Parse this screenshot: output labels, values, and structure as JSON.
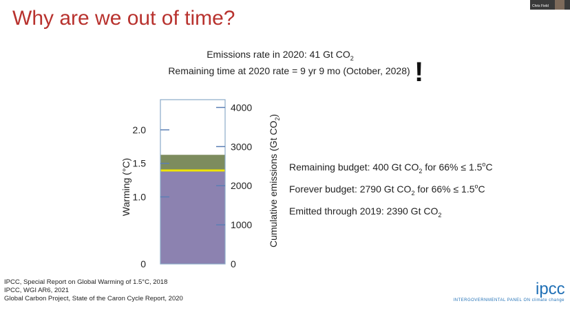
{
  "slide": {
    "title": "Why are we out of time?",
    "headline": [
      [
        {
          "text": "Emissions rate in 2020:  41 Gt CO"
        },
        {
          "sub": "2"
        }
      ],
      [
        {
          "text": "Remaining time at 2020 rate = 9 yr 9 mo (October, 2028)"
        }
      ]
    ],
    "exclamation": "!",
    "budgets": [
      [
        {
          "text": "Remaining budget:  400 Gt CO"
        },
        {
          "sub": "2"
        },
        {
          "text": " for 66% ≤ 1.5"
        },
        {
          "sup": "o"
        },
        {
          "text": "C"
        }
      ],
      [
        {
          "text": "Forever budget:  2790 Gt CO"
        },
        {
          "sub": "2"
        },
        {
          "text": " for 66% ≤ 1.5"
        },
        {
          "sup": "o"
        },
        {
          "text": "C"
        }
      ],
      [
        {
          "text": "Emitted through 2019:    2390 Gt CO"
        },
        {
          "sub": "2"
        }
      ]
    ],
    "references": [
      "IPCC, Special Report on Global Warming of 1.5°C, 2018",
      "IPCC, WGI AR6, 2021",
      "Global Carbon Project, State of the Caron Cycle Report, 2020"
    ],
    "logo": "ipcc",
    "logo_caption": "INTERGOVERNMENTAL PANEL ON climate change",
    "webcam_name": "Chris Field"
  },
  "chart_data": {
    "type": "stacked-column",
    "values": [
      2390,
      400
    ],
    "colors": [
      "#8c82b0",
      "#7d8c5e"
    ],
    "boundary_color": "#f0e400",
    "ylim": [
      0,
      4200
    ],
    "yticks": [
      0,
      1000,
      2000,
      3000,
      4000
    ],
    "ylabel": [
      {
        "text": "Cumulative emissions (Gt CO"
      },
      {
        "sub": "2"
      },
      {
        "text": ")"
      }
    ],
    "y2lim": [
      0,
      2.45
    ],
    "y2ticks": [
      0,
      {
        "value": 1,
        "label": "1.0"
      },
      {
        "value": 1.5,
        "label": "1.5"
      },
      {
        "value": 2,
        "label": "2.0"
      }
    ],
    "y2label": [
      {
        "text": "Warming (°C)"
      }
    ]
  }
}
